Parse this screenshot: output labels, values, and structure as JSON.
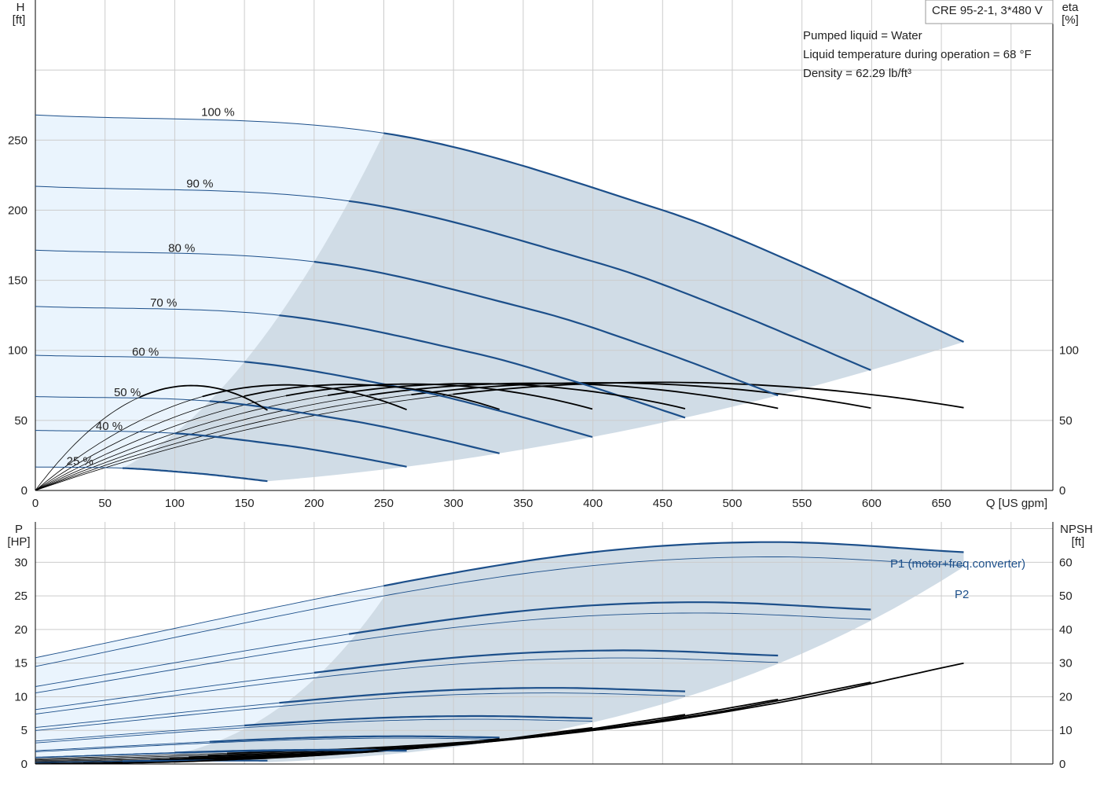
{
  "info_box": {
    "model": "CRE 95-2-1, 3*480 V",
    "lines": [
      "Pumped liquid = Water",
      "Liquid temperature during operation = 68 °F",
      "Density = 62.29 lb/ft³"
    ]
  },
  "colors": {
    "curve_blue": "#1c4f8a",
    "area_light": "#eaf4fd",
    "area_dark": "#d0dce6",
    "grid": "#cccccc",
    "eff_black": "#000000"
  },
  "chart_data": [
    {
      "type": "line",
      "panel": "head",
      "ylabel_top": "H",
      "ylabel_unit": "[ft]",
      "y2label_top": "eta",
      "y2label_unit": "[%]",
      "xlabel": "Q [US gpm]",
      "xlim": [
        0,
        730
      ],
      "ylim": [
        0,
        350
      ],
      "y2lim": [
        0,
        350
      ],
      "xticks": [
        0,
        50,
        100,
        150,
        200,
        250,
        300,
        350,
        400,
        450,
        500,
        550,
        600,
        650
      ],
      "yticks": [
        0,
        50,
        100,
        150,
        200,
        250
      ],
      "y2ticks": [
        0,
        50,
        100
      ],
      "grid": true,
      "speed_curves": [
        {
          "name": "100 %",
          "speed": 1.0,
          "label_at": [
            131,
            270
          ]
        },
        {
          "name": "90 %",
          "speed": 0.9,
          "label_at": [
            118,
            219
          ]
        },
        {
          "name": "80 %",
          "speed": 0.8,
          "label_at": [
            105,
            173
          ]
        },
        {
          "name": "70 %",
          "speed": 0.7,
          "label_at": [
            92,
            134
          ]
        },
        {
          "name": "60 %",
          "speed": 0.6,
          "label_at": [
            79,
            99
          ]
        },
        {
          "name": "50 %",
          "speed": 0.5,
          "label_at": [
            66,
            70
          ]
        },
        {
          "name": "40 %",
          "speed": 0.4,
          "label_at": [
            53,
            46
          ]
        },
        {
          "name": "25 %",
          "speed": 0.25,
          "label_at": [
            32,
            21
          ]
        }
      ],
      "base_head_curve": {
        "q": [
          0,
          250,
          450,
          550,
          666
        ],
        "h": [
          268,
          255,
          200,
          160,
          106
        ]
      },
      "q_max": 666,
      "bep_q": 250,
      "efficiency_peak_percent": 77
    },
    {
      "type": "line",
      "panel": "power",
      "ylabel_top": "P",
      "ylabel_unit": "[HP]",
      "y2label_top": "NPSH",
      "y2label_unit": "[ft]",
      "xlim": [
        0,
        730
      ],
      "ylim": [
        0,
        36
      ],
      "y2lim": [
        0,
        72
      ],
      "yticks": [
        0,
        5,
        10,
        15,
        20,
        25,
        30
      ],
      "y2ticks": [
        0,
        10,
        20,
        30,
        40,
        50,
        60
      ],
      "grid": true,
      "series_labels": {
        "p1": "P1 (motor+freq.converter)",
        "p2": "P2"
      },
      "p1_base": {
        "q": [
          0,
          250,
          400,
          530,
          666
        ],
        "p": [
          15.8,
          26.5,
          31.5,
          33.0,
          31.5
        ]
      },
      "p2_base": {
        "q": [
          0,
          250,
          400,
          530,
          666
        ],
        "p": [
          14.5,
          25.0,
          29.5,
          30.8,
          29.5
        ]
      },
      "npsh_100": {
        "q": [
          0,
          250,
          400,
          530,
          666
        ],
        "npsh": [
          1.5,
          5,
          10,
          18,
          30
        ]
      }
    }
  ]
}
